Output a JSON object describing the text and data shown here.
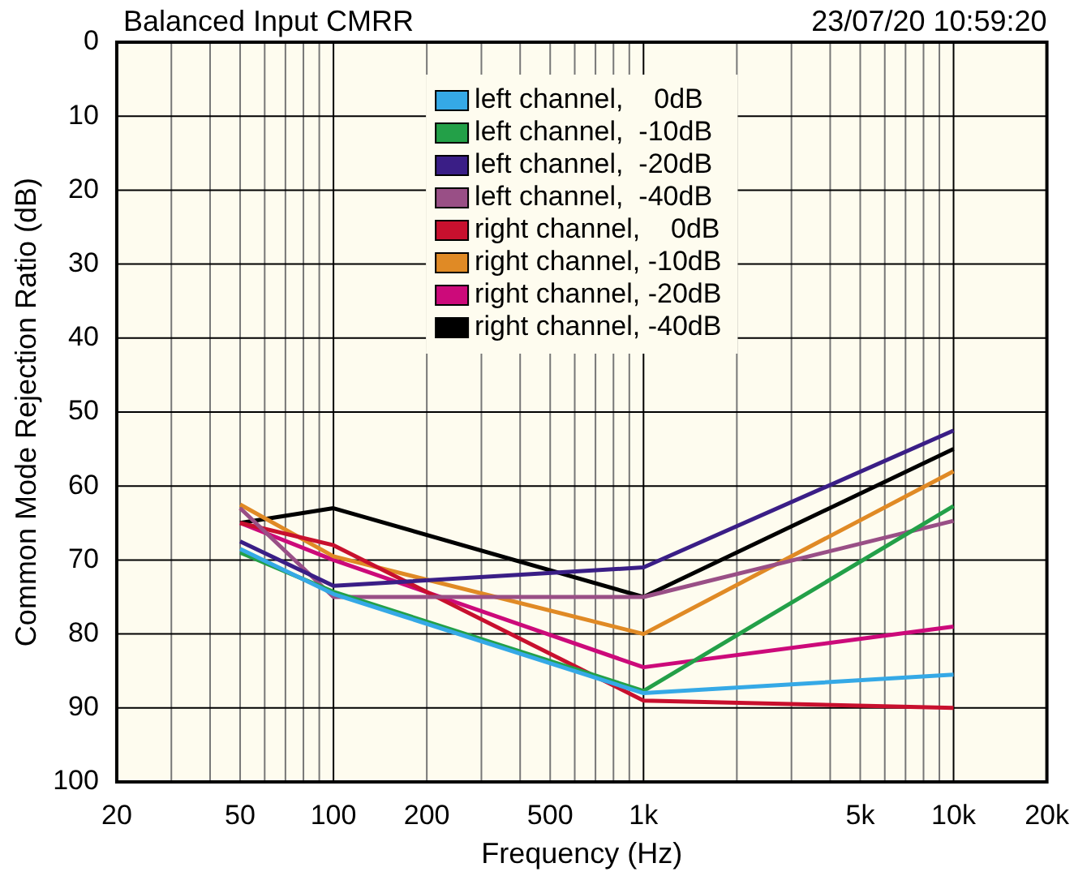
{
  "chart_data": {
    "type": "line",
    "title": "Balanced Input CMRR",
    "subtitle": "23/07/20 10:59:20",
    "xlabel": "Frequency (Hz)",
    "ylabel": "Common Mode Rejection Ratio (dB)",
    "log": "x",
    "grid": true,
    "legend": "top",
    "marker": "none",
    "line_style": "solid",
    "xlim": [
      20,
      20000
    ],
    "xticks": [
      20,
      50,
      100,
      200,
      500,
      {
        "value": 1000,
        "label": "1k"
      },
      {
        "value": 5000,
        "label": "5k"
      },
      {
        "value": 10000,
        "label": "10k"
      },
      {
        "value": 20000,
        "label": "20k"
      }
    ],
    "ylim": [
      100,
      0
    ],
    "yticks": [
      0,
      10,
      20,
      30,
      40,
      50,
      60,
      70,
      80,
      90,
      100
    ],
    "x": [
      50,
      100,
      1000,
      10000
    ],
    "series": [
      {
        "name": "left channel,    0dB",
        "color": "#35a9e6",
        "values": [
          68.5,
          74.6,
          88,
          85.5
        ]
      },
      {
        "name": "left channel,  -10dB",
        "color": "#23a048",
        "values": [
          69,
          74.3,
          87.7,
          62.7
        ]
      },
      {
        "name": "left channel,  -20dB",
        "color": "#3a1e86",
        "values": [
          67.5,
          73.5,
          71,
          52.5
        ]
      },
      {
        "name": "left channel,  -40dB",
        "color": "#994f86",
        "values": [
          63,
          75,
          75,
          64.7
        ]
      },
      {
        "name": "right channel,    0dB",
        "color": "#c8102e",
        "values": [
          65,
          68,
          89,
          90
        ]
      },
      {
        "name": "right channel, -10dB",
        "color": "#e08a25",
        "values": [
          62.5,
          69.5,
          80,
          58
        ]
      },
      {
        "name": "right channel, -20dB",
        "color": "#cc0a7a",
        "values": [
          65,
          70,
          84.5,
          79
        ]
      },
      {
        "name": "right channel, -40dB",
        "color": "#000000",
        "values": [
          65,
          63,
          75,
          55
        ]
      }
    ]
  }
}
